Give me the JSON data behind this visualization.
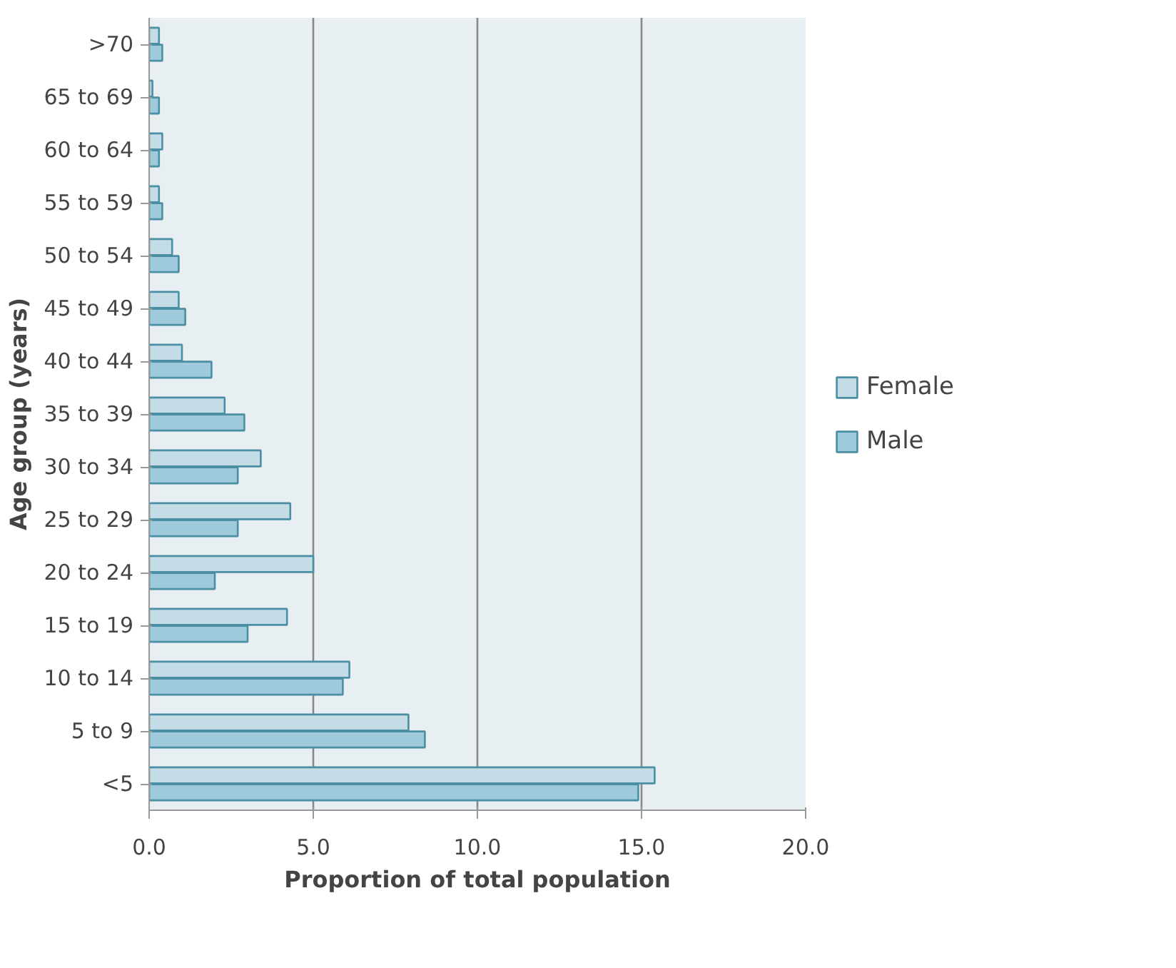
{
  "chart_data": {
    "type": "bar",
    "orientation": "horizontal",
    "xlabel": "Proportion of total population",
    "ylabel": "Age group (years)",
    "categories": [
      ">70",
      "65 to 69",
      "60 to 64",
      "55 to 59",
      "50 to 54",
      "45 to 49",
      "40 to 44",
      "35 to 39",
      "30 to 34",
      "25 to 29",
      "20 to 24",
      "15 to 19",
      "10 to 14",
      "5 to 9",
      "<5"
    ],
    "series": [
      {
        "name": "Female",
        "color": "#c3dce6",
        "values": [
          0.3,
          0.1,
          0.4,
          0.3,
          0.7,
          0.9,
          1.0,
          2.3,
          3.4,
          4.3,
          5.0,
          4.2,
          6.1,
          7.9,
          15.4
        ]
      },
      {
        "name": "Male",
        "color": "#9ecadb",
        "values": [
          0.4,
          0.3,
          0.3,
          0.4,
          0.9,
          1.1,
          1.9,
          2.9,
          2.7,
          2.7,
          2.0,
          3.0,
          5.9,
          8.4,
          14.9
        ]
      }
    ],
    "xlim": [
      0,
      20
    ],
    "xticks": [
      {
        "value": 0,
        "label": "0.0"
      },
      {
        "value": 5,
        "label": "5.0"
      },
      {
        "value": 10,
        "label": "10.0"
      },
      {
        "value": 15,
        "label": "15.0"
      },
      {
        "value": 20,
        "label": "20.0"
      }
    ],
    "grid": "x",
    "legend": "right"
  }
}
